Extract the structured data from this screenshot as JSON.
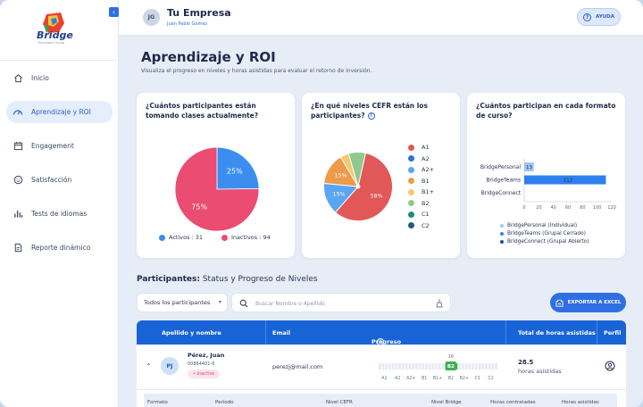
{
  "brand": {
    "name": "Bridge",
    "sub": "Education Group"
  },
  "sidebar": {
    "items": [
      {
        "label": "Inicio",
        "icon": "home-icon"
      },
      {
        "label": "Aprendizaje y ROI",
        "icon": "gauge-icon",
        "active": true
      },
      {
        "label": "Engagement",
        "icon": "calendar-icon"
      },
      {
        "label": "Satisfacción",
        "icon": "smile-icon"
      },
      {
        "label": "Tests de idiomas",
        "icon": "bar-chart-icon"
      },
      {
        "label": "Reporte dinámico",
        "icon": "document-icon"
      }
    ]
  },
  "header": {
    "avatar_initials": "JG",
    "company": "Tu Empresa",
    "user": "Juan Pablo Gómez",
    "help_label": "AYUDA"
  },
  "page": {
    "title": "Aprendizaje y ROI",
    "subtitle": "Visualiza el progreso en niveles y horas asistidas para evaluar el retorno de inversión."
  },
  "cards": {
    "active": {
      "title": "¿Cuántos participantes están tomando clases actualmente?",
      "legend_active": "Activos : 31",
      "legend_inactive": "Inactivos : 94"
    },
    "cefr": {
      "title": "¿En qué niveles CEFR están los participantes?"
    },
    "format": {
      "title": "¿Cuántos participan en cada formato de curso?"
    }
  },
  "chart_data": [
    {
      "type": "pie",
      "categories": [
        "Activos",
        "Inactivos"
      ],
      "values": [
        31,
        94
      ],
      "labels": [
        "25%",
        "75%"
      ],
      "colors": [
        "#3b8ef0",
        "#ea4c72"
      ]
    },
    {
      "type": "pie",
      "categories": [
        "A1",
        "A2",
        "A2+",
        "B1",
        "B1+",
        "B2",
        "C1",
        "C2"
      ],
      "values": [
        58,
        0,
        15,
        15,
        4,
        8,
        0,
        0
      ],
      "labels": [
        "58%",
        "",
        "15%",
        "15%",
        "",
        "",
        "",
        ""
      ],
      "colors": [
        "#e25757",
        "#2e72d6",
        "#5aa6f2",
        "#ee9a4d",
        "#f3c96f",
        "#8fc98f",
        "#1f8c7a",
        "#1e5c86"
      ]
    },
    {
      "type": "bar",
      "orientation": "horizontal",
      "categories": [
        "BridgePersonal",
        "BridgeTeams",
        "BridgeConnect"
      ],
      "values": [
        13,
        112,
        0
      ],
      "xlim": [
        0,
        120
      ],
      "xticks": [
        0,
        20,
        40,
        60,
        80,
        100,
        120
      ],
      "colors": [
        "#9ec6f7",
        "#2f80ed",
        "#1a4fa8"
      ],
      "legend": [
        "BridgePersonal (Individual)",
        "BridgeTeams (Grupal Cerrado)",
        "BridgeConnect (Grupal Abierto)"
      ]
    }
  ],
  "participants": {
    "title_bold": "Participantes:",
    "title_rest": " Status y Progreso de Niveles",
    "filter_value": "Todos los participantes",
    "search_placeholder": "Buscar Nombre o Apellido",
    "export_label": "EXPORTAR A EXCEL",
    "columns": [
      "Apellido y nombre",
      "Email",
      "Progreso de nivel",
      "Total de horas asistidas",
      "Perfil"
    ],
    "rows": [
      {
        "initials": "PJ",
        "name": "Pérez, Juan",
        "id": "00864401-6",
        "status": "• Inactivo",
        "email": "perezj@mail.com",
        "progress_levels": [
          "A1",
          "A2",
          "A2+",
          "B1",
          "B1+",
          "B2",
          "B2+",
          "C1",
          "C2"
        ],
        "progress_current": "B2",
        "progress_hours": "16",
        "hours": "28.5",
        "hours_label": "horas asistidas"
      }
    ],
    "sub_columns": [
      "Formato",
      "Período",
      "Nivel CEFR",
      "Nivel Bridge",
      "Horas contratadas",
      "Horas asistidas"
    ]
  }
}
